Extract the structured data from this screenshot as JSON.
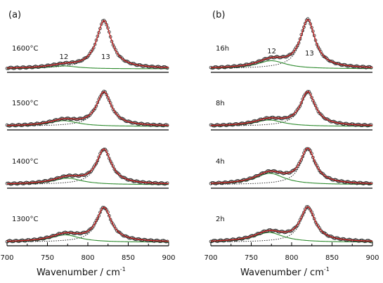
{
  "chart_data": [
    {
      "type": "line",
      "panel_label": "(a)",
      "xlabel": "Wavenumber / cm",
      "xlabel_superscript": "-1",
      "xlim": [
        700,
        900
      ],
      "xticks": [
        700,
        750,
        800,
        850,
        900
      ],
      "peak_labels": [
        "12",
        "13"
      ],
      "curves": [
        "experimental data",
        "total fit",
        "peak 12",
        "peak 13"
      ],
      "colors": {
        "data": "#2b2b2b",
        "fit": "#cc2222",
        "peak12": "#2e8b2e",
        "peak13": "#111111",
        "axis": "#000000"
      },
      "stacks": [
        {
          "label": "1600°C",
          "peak12_center": 770,
          "peak12_rel_height": 0.06,
          "peak13_center": 820,
          "show_peak_labels": true
        },
        {
          "label": "1500°C",
          "peak12_center": 770,
          "peak12_rel_height": 0.17,
          "peak13_center": 820,
          "show_peak_labels": false
        },
        {
          "label": "1400°C",
          "peak12_center": 775,
          "peak12_rel_height": 0.19,
          "peak13_center": 820,
          "show_peak_labels": false
        },
        {
          "label": "1300°C",
          "peak12_center": 772,
          "peak12_rel_height": 0.22,
          "peak13_center": 820,
          "show_peak_labels": false
        }
      ]
    },
    {
      "type": "line",
      "panel_label": "(b)",
      "xlabel": "Wavenumber / cm",
      "xlabel_superscript": "-1",
      "xlim": [
        700,
        900
      ],
      "xticks": [
        700,
        750,
        800,
        850,
        900
      ],
      "peak_labels": [
        "12",
        "13"
      ],
      "curves": [
        "experimental data",
        "total fit",
        "peak 12",
        "peak 13"
      ],
      "colors": {
        "data": "#2b2b2b",
        "fit": "#cc2222",
        "peak12": "#2e8b2e",
        "peak13": "#111111",
        "axis": "#000000"
      },
      "stacks": [
        {
          "label": "16h",
          "peak12_center": 775,
          "peak12_rel_height": 0.17,
          "peak13_center": 820,
          "show_peak_labels": true
        },
        {
          "label": "8h",
          "peak12_center": 772,
          "peak12_rel_height": 0.19,
          "peak13_center": 820,
          "show_peak_labels": false
        },
        {
          "label": "4h",
          "peak12_center": 773,
          "peak12_rel_height": 0.33,
          "peak13_center": 820,
          "show_peak_labels": false
        },
        {
          "label": "2h",
          "peak12_center": 772,
          "peak12_rel_height": 0.29,
          "peak13_center": 820,
          "show_peak_labels": false
        }
      ]
    }
  ]
}
